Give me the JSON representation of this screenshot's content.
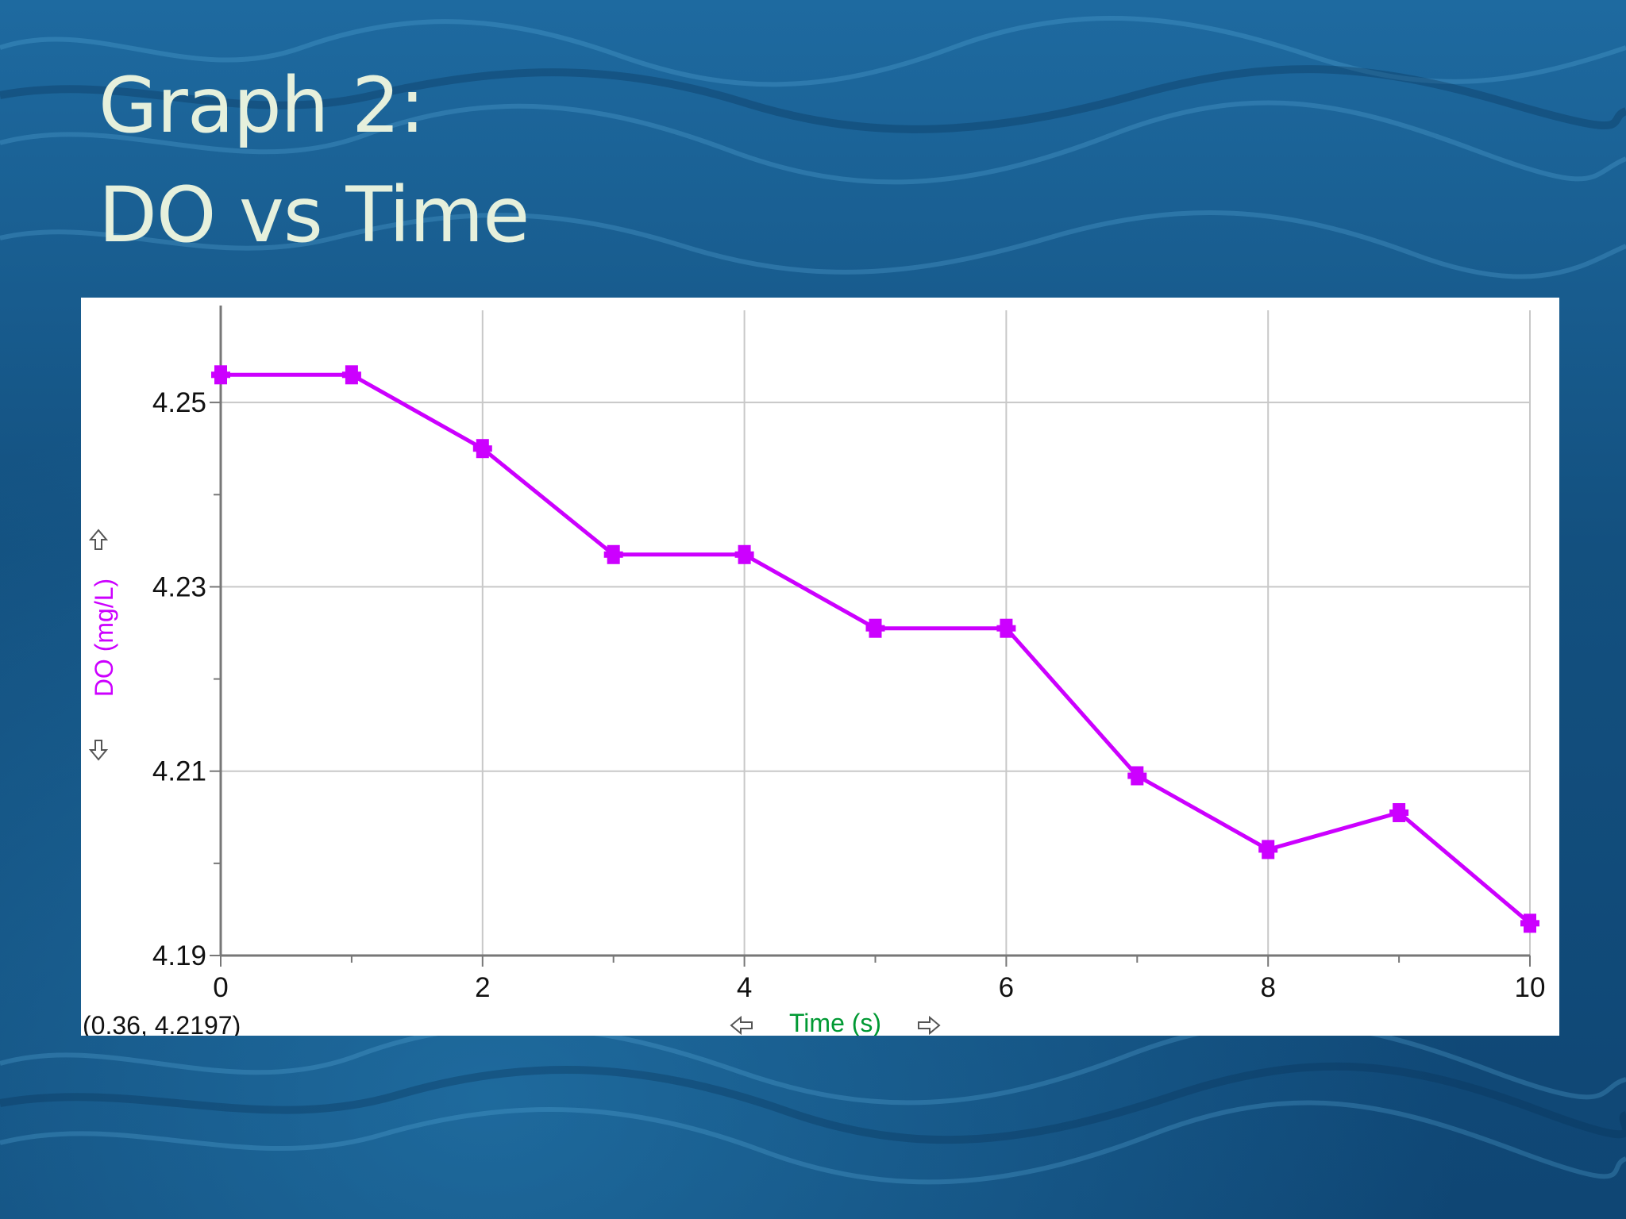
{
  "slide": {
    "title_line1": "Graph 2:",
    "title_line2": "DO vs Time"
  },
  "colors": {
    "background": "#1a5c8c",
    "title": "#e6f0dc",
    "series": "#cc00ff",
    "ylabel": "#cc00ff",
    "xlabel": "#009933",
    "grid": "#c8c8c8",
    "axis": "#777777"
  },
  "icons": {
    "y_scroll_up": "up-arrow-icon",
    "y_scroll_down": "down-arrow-icon",
    "x_scroll_left": "left-arrow-icon",
    "x_scroll_right": "right-arrow-icon"
  },
  "readout": "(0.36, 4.2197)",
  "chart_data": {
    "type": "line",
    "x": [
      0,
      1,
      2,
      3,
      4,
      5,
      6,
      7,
      8,
      9,
      10
    ],
    "series": [
      {
        "values": [
          4.253,
          4.253,
          4.245,
          4.2335,
          4.2335,
          4.2255,
          4.2255,
          4.2095,
          4.2015,
          4.2055,
          4.1935
        ]
      }
    ],
    "xlabel": "Time (s)",
    "ylabel": "DO (mg/L)",
    "xlim": [
      0,
      10
    ],
    "ylim": [
      4.19,
      4.26
    ],
    "xticks": [
      0,
      2,
      4,
      6,
      8,
      10
    ],
    "xtick_labels": [
      "0",
      "2",
      "4",
      "6",
      "8",
      "10"
    ],
    "yticks": [
      4.19,
      4.21,
      4.23,
      4.25
    ],
    "ytick_labels": [
      "4.19",
      "4.21",
      "4.23",
      "4.25"
    ],
    "grid": true,
    "markers": "square"
  }
}
